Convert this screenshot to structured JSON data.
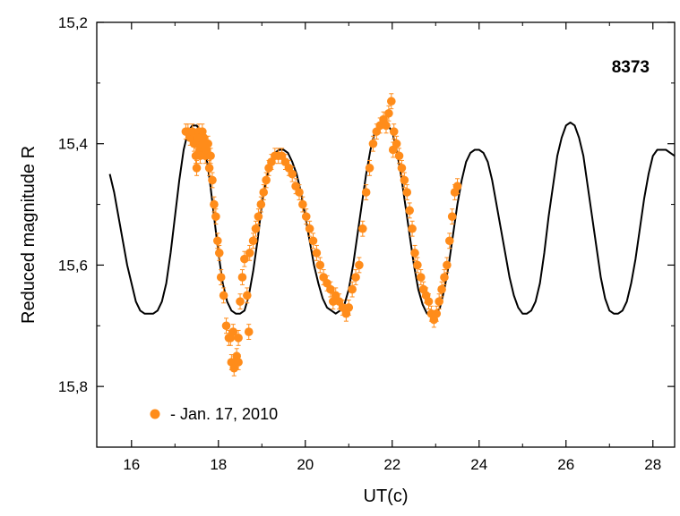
{
  "chart_data": {
    "type": "scatter",
    "title": "",
    "annotation": "8373",
    "xlabel": "UT(c)",
    "ylabel": "Reduced magnitude R",
    "xlim": [
      15.2,
      28.5
    ],
    "ylim": [
      15.2,
      15.9
    ],
    "y_inverted": true,
    "x_ticks": [
      16,
      18,
      20,
      22,
      24,
      26,
      28
    ],
    "x_tick_labels": [
      "16",
      "18",
      "20",
      "22",
      "24",
      "26",
      "28"
    ],
    "y_ticks": [
      15.2,
      15.4,
      15.6,
      15.8
    ],
    "y_tick_labels": [
      "15,2",
      "15,4",
      "15,6",
      "15,8"
    ],
    "grid": false,
    "legend_position": "bottom-left",
    "colors": {
      "points": "#ff8c1a",
      "curve": "#000000",
      "axis": "#000000"
    },
    "series": [
      {
        "name": "- Jan. 17, 2010",
        "kind": "points",
        "error": 0.008,
        "x": [
          17.25,
          17.3,
          17.35,
          17.4,
          17.44,
          17.48,
          17.5,
          17.52,
          17.55,
          17.58,
          17.6,
          17.63,
          17.66,
          17.7,
          17.73,
          17.76,
          17.79,
          17.82,
          17.86,
          17.9,
          17.94,
          17.98,
          18.02,
          18.06,
          18.12,
          18.18,
          18.24,
          18.3,
          18.36,
          18.42,
          18.46,
          18.5,
          18.55,
          18.6,
          18.66,
          18.72,
          18.8,
          18.86,
          18.92,
          18.98,
          19.04,
          19.1,
          19.16,
          19.22,
          19.3,
          19.38,
          19.46,
          19.54,
          19.62,
          19.7,
          19.78,
          19.86,
          19.94,
          20.02,
          20.1,
          20.18,
          20.26,
          20.34,
          20.42,
          20.5,
          20.58,
          20.64,
          20.7,
          20.78,
          20.86,
          20.94,
          21.0,
          21.08,
          21.16,
          21.24,
          21.32,
          21.4,
          21.48,
          21.56,
          21.64,
          21.72,
          21.8,
          21.86,
          21.92,
          21.98,
          22.04,
          22.1,
          22.16,
          22.22,
          22.28,
          22.34,
          22.4,
          22.46,
          22.52,
          22.58,
          22.66,
          22.72,
          22.78,
          22.84,
          22.9,
          22.96,
          23.02,
          23.08,
          23.14,
          23.2,
          23.26,
          23.32,
          23.38,
          23.44,
          23.5,
          17.58,
          17.64,
          17.52,
          22.02,
          18.28,
          18.34,
          18.46,
          18.7
        ],
        "y": [
          15.38,
          15.38,
          15.39,
          15.38,
          15.4,
          15.42,
          15.44,
          15.4,
          15.38,
          15.41,
          15.4,
          15.38,
          15.39,
          15.42,
          15.41,
          15.4,
          15.44,
          15.42,
          15.46,
          15.5,
          15.52,
          15.56,
          15.58,
          15.62,
          15.65,
          15.7,
          15.72,
          15.76,
          15.77,
          15.75,
          15.72,
          15.66,
          15.62,
          15.59,
          15.65,
          15.58,
          15.56,
          15.54,
          15.52,
          15.5,
          15.48,
          15.46,
          15.44,
          15.43,
          15.42,
          15.42,
          15.42,
          15.43,
          15.44,
          15.45,
          15.47,
          15.48,
          15.5,
          15.52,
          15.54,
          15.56,
          15.58,
          15.6,
          15.62,
          15.63,
          15.64,
          15.66,
          15.65,
          15.66,
          15.67,
          15.68,
          15.67,
          15.64,
          15.62,
          15.6,
          15.54,
          15.48,
          15.44,
          15.4,
          15.38,
          15.37,
          15.36,
          15.37,
          15.35,
          15.33,
          15.38,
          15.4,
          15.42,
          15.44,
          15.46,
          15.48,
          15.51,
          15.54,
          15.58,
          15.6,
          15.62,
          15.64,
          15.65,
          15.66,
          15.68,
          15.69,
          15.68,
          15.66,
          15.64,
          15.62,
          15.6,
          15.56,
          15.52,
          15.48,
          15.47,
          15.42,
          15.4,
          15.39,
          15.41,
          15.72,
          15.71,
          15.76,
          15.71
        ]
      },
      {
        "name": "",
        "kind": "curve",
        "x": [
          15.5,
          15.6,
          15.7,
          15.8,
          15.9,
          16.0,
          16.1,
          16.2,
          16.3,
          16.4,
          16.5,
          16.6,
          16.7,
          16.8,
          16.9,
          17.0,
          17.1,
          17.2,
          17.3,
          17.4,
          17.5,
          17.6,
          17.7,
          17.8,
          17.9,
          18.0,
          18.1,
          18.2,
          18.3,
          18.4,
          18.5,
          18.6,
          18.7,
          18.8,
          18.9,
          19.0,
          19.1,
          19.2,
          19.3,
          19.4,
          19.5,
          19.6,
          19.7,
          19.8,
          19.9,
          20.0,
          20.1,
          20.2,
          20.3,
          20.4,
          20.5,
          20.6,
          20.7,
          20.8,
          20.9,
          21.0,
          21.1,
          21.2,
          21.3,
          21.4,
          21.5,
          21.6,
          21.7,
          21.8,
          21.9,
          22.0,
          22.1,
          22.2,
          22.3,
          22.4,
          22.5,
          22.6,
          22.7,
          22.8,
          22.9,
          23.0,
          23.1,
          23.2,
          23.3,
          23.4,
          23.5,
          23.6,
          23.7,
          23.8,
          23.9,
          24.0,
          24.1,
          24.2,
          24.3,
          24.4,
          24.5,
          24.6,
          24.7,
          24.8,
          24.9,
          25.0,
          25.1,
          25.2,
          25.3,
          25.4,
          25.5,
          25.6,
          25.7,
          25.8,
          25.9,
          26.0,
          26.1,
          26.2,
          26.3,
          26.4,
          26.5,
          26.6,
          26.7,
          26.8,
          26.9,
          27.0,
          27.1,
          27.2,
          27.3,
          27.4,
          27.5,
          27.6,
          27.7,
          27.8,
          27.9,
          28.0,
          28.1,
          28.2,
          28.3,
          28.4,
          28.5
        ],
        "y": [
          15.45,
          15.48,
          15.52,
          15.56,
          15.6,
          15.63,
          15.66,
          15.675,
          15.68,
          15.68,
          15.68,
          15.675,
          15.66,
          15.63,
          15.58,
          15.52,
          15.46,
          15.41,
          15.38,
          15.37,
          15.37,
          15.38,
          15.41,
          15.46,
          15.52,
          15.58,
          15.63,
          15.66,
          15.675,
          15.68,
          15.68,
          15.675,
          15.65,
          15.61,
          15.56,
          15.5,
          15.46,
          15.43,
          15.415,
          15.41,
          15.41,
          15.415,
          15.43,
          15.45,
          15.48,
          15.52,
          15.56,
          15.6,
          15.63,
          15.655,
          15.67,
          15.675,
          15.68,
          15.675,
          15.665,
          15.64,
          15.6,
          15.55,
          15.5,
          15.45,
          15.41,
          15.38,
          15.37,
          15.365,
          15.37,
          15.38,
          15.41,
          15.45,
          15.5,
          15.55,
          15.6,
          15.64,
          15.665,
          15.68,
          15.68,
          15.68,
          15.67,
          15.64,
          15.6,
          15.55,
          15.5,
          15.46,
          15.43,
          15.415,
          15.41,
          15.41,
          15.415,
          15.43,
          15.46,
          15.5,
          15.54,
          15.58,
          15.62,
          15.65,
          15.67,
          15.68,
          15.68,
          15.675,
          15.66,
          15.63,
          15.58,
          15.52,
          15.47,
          15.42,
          15.39,
          15.37,
          15.365,
          15.37,
          15.39,
          15.42,
          15.47,
          15.52,
          15.57,
          15.62,
          15.655,
          15.675,
          15.68,
          15.68,
          15.675,
          15.66,
          15.63,
          15.59,
          15.54,
          15.49,
          15.45,
          15.42,
          15.41,
          15.41,
          15.41,
          15.415,
          15.42
        ]
      }
    ]
  }
}
